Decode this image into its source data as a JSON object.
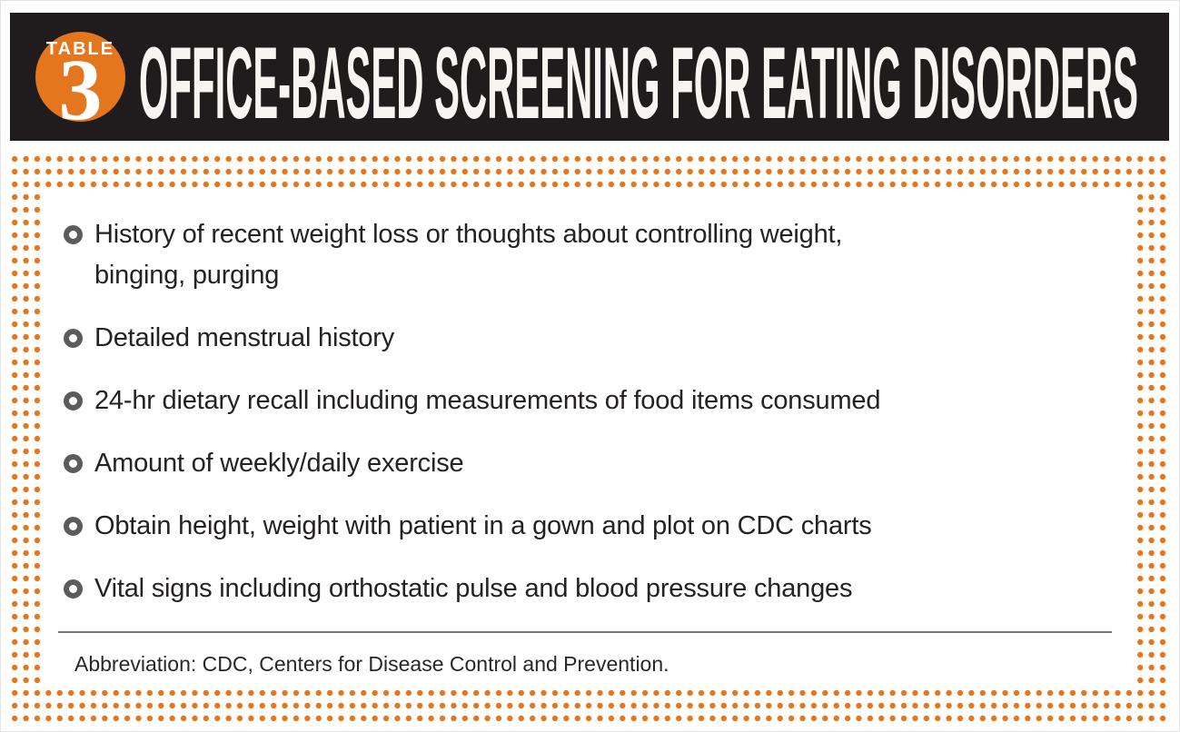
{
  "header": {
    "badge_label": "TABLE",
    "badge_number": "3",
    "title": "OFFICE-BASED SCREENING FOR EATING DISORDERS"
  },
  "list": {
    "items": [
      {
        "text": "History of recent weight loss or thoughts about controlling weight,\nbinging, purging"
      },
      {
        "text": "Detailed menstrual history"
      },
      {
        "text": "24-hr dietary recall including measurements of food items consumed"
      },
      {
        "text": "Amount of weekly/daily exercise"
      },
      {
        "text": "Obtain height, weight with patient in a gown and plot on CDC charts"
      },
      {
        "text": "Vital signs including orthostatic pulse and blood pressure changes"
      }
    ]
  },
  "footnote": "Abbreviation: CDC, Centers for Disease Control and Prevention.",
  "colors": {
    "accent_orange": "#E4771E",
    "header_black": "#201C1D",
    "body_text": "#262223",
    "bullet_gray": "#5B5C5E",
    "divider_gray": "#77787B"
  }
}
